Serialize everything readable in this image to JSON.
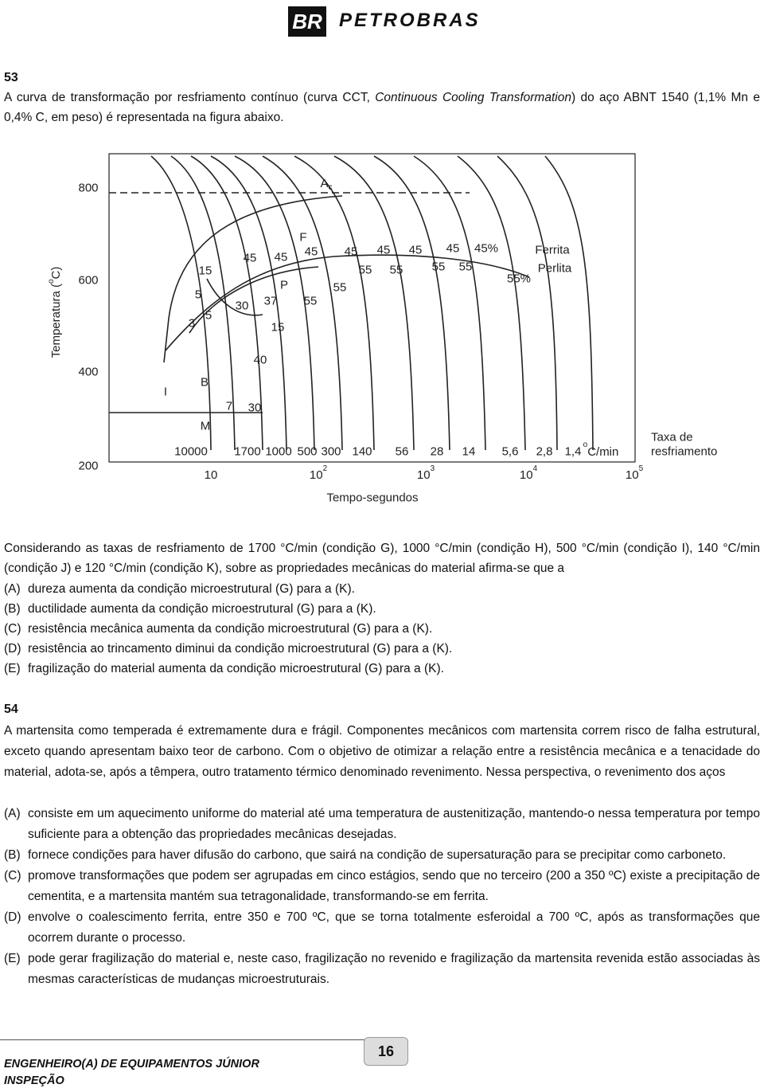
{
  "header": {
    "logo": "BR",
    "brand": "PETROBRAS"
  },
  "q53": {
    "number": "53",
    "intro": [
      "A curva de transformação por resfriamento contínuo (curva CCT, ",
      "Continuous Cooling Transformation",
      ") do aço ABNT 1540 (1,1% Mn e 0,4% C, em peso) é representada na figura abaixo."
    ],
    "figure": {
      "y_axis_title": [
        "Temperatura (",
        "o",
        "C)"
      ],
      "y_ticks": [
        "800",
        "600",
        "400",
        "200"
      ],
      "x_ticks": [
        {
          "base": "10"
        },
        {
          "base": "10",
          "exp": "2"
        },
        {
          "base": "10",
          "exp": "3"
        },
        {
          "base": "10",
          "exp": "4"
        },
        {
          "base": "10",
          "exp": "5"
        }
      ],
      "x_axis_title": "Tempo-segundos",
      "ac": {
        "main": "A",
        "sub": "c"
      },
      "regions": [
        "15",
        "45",
        "45",
        "F",
        "45",
        "45",
        "45",
        "45",
        "45",
        "45%",
        "55",
        "55",
        "55",
        "55",
        "55%",
        "Ferrita",
        "Perlita",
        "5",
        "3",
        "5",
        "P",
        "37",
        "30",
        "55",
        "55",
        "15",
        "40",
        "B",
        "I",
        "7",
        "30",
        "M"
      ],
      "rates": [
        "10000",
        "1700",
        "1000",
        "500",
        "300",
        "140",
        "56",
        "28",
        "14",
        "5,6",
        "2,8",
        "1,4"
      ],
      "rate_unit": {
        "deg": "o",
        "unit": "C/min"
      },
      "rate_caption": [
        "Taxa de",
        "resfriamento"
      ]
    },
    "stem": "Considerando as taxas de resfriamento de 1700 °C/min (condição G), 1000 °C/min (condição H), 500 °C/min (condição I), 140 °C/min (condição J) e 120 °C/min (condição K), sobre as propriedades mecânicas do material afirma-se que a",
    "options": [
      {
        "letter": "(A)",
        "text": "dureza aumenta da condição microestrutural (G) para a (K)."
      },
      {
        "letter": "(B)",
        "text": "ductilidade aumenta da condição microestrutural (G) para a (K)."
      },
      {
        "letter": "(C)",
        "text": "resistência mecânica aumenta da condição microestrutural (G) para a (K)."
      },
      {
        "letter": "(D)",
        "text": "resistência ao trincamento diminui da condição microestrutural (G) para a (K)."
      },
      {
        "letter": "(E)",
        "text": "fragilização do material aumenta da condição microestrutural (G) para a (K)."
      }
    ]
  },
  "q54": {
    "number": "54",
    "stem": "A martensita como temperada é extremamente dura e frágil. Componentes mecânicos com martensita correm risco de falha estrutural, exceto quando apresentam baixo teor de carbono. Com o objetivo de otimizar a relação entre a resistência mecânica e a tenacidade do material, adota-se, após a têmpera, outro tratamento térmico denominado revenimento. Nessa perspectiva, o revenimento dos aços",
    "options": [
      {
        "letter": "(A)",
        "text": "consiste em um aquecimento uniforme do material até uma temperatura de austenitização, mantendo-o nessa temperatura por tempo suficiente para a obtenção das propriedades mecânicas desejadas."
      },
      {
        "letter": "(B)",
        "text": "fornece condições para haver difusão do carbono, que sairá na condição de supersaturação para se precipitar como carboneto."
      },
      {
        "letter": "(C)",
        "text": "promove transformações que podem ser agrupadas em cinco estágios, sendo que no terceiro (200 a 350 ºC) existe a precipitação de cementita, e a martensita mantém sua tetragonalidade, transformando-se em ferrita."
      },
      {
        "letter": "(D)",
        "text": "envolve o coalescimento ferrita, entre 350 e 700 ºC, que se torna totalmente esferoidal a 700 ºC, após as transformações que ocorrem durante o processo."
      },
      {
        "letter": "(E)",
        "text": "pode gerar fragilização do material e, neste caso, fragilização no revenido e fragilização da martensita revenida estão associadas às mesmas características de mudanças microestruturais."
      }
    ]
  },
  "footer": {
    "title": "ENGENHEIRO(A) DE EQUIPAMENTOS JÚNIOR",
    "subtitle": "INSPEÇÃO",
    "page": "16"
  }
}
